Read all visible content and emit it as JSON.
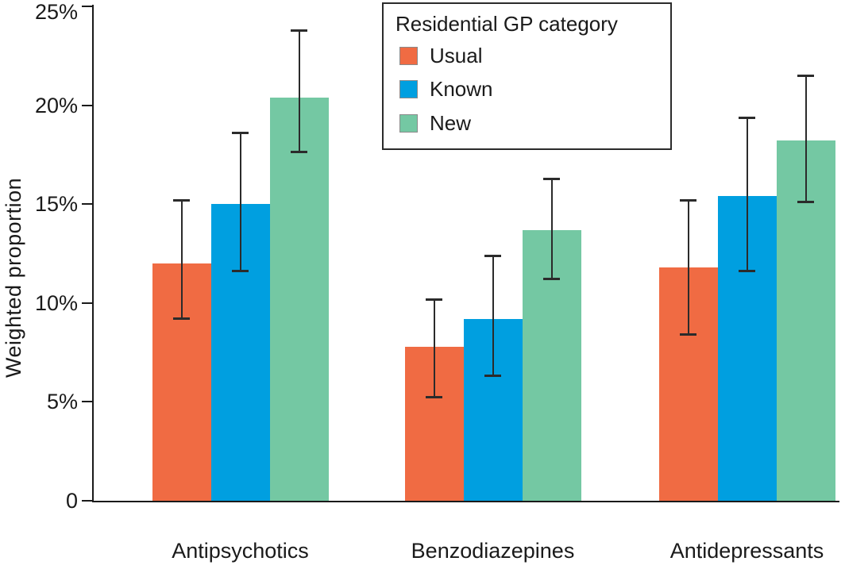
{
  "chart_data": {
    "type": "bar",
    "title": "",
    "categories": [
      "Antipsychotics",
      "Benzodiazepines",
      "Antidepressants"
    ],
    "series": [
      {
        "name": "Usual",
        "color": "#F06B43",
        "values": [
          12.0,
          7.8,
          11.8
        ],
        "ci_low": [
          9.2,
          5.2,
          8.4
        ],
        "ci_high": [
          15.2,
          10.2,
          15.2
        ]
      },
      {
        "name": "Known",
        "color": "#009FE0",
        "values": [
          15.0,
          9.2,
          15.4
        ],
        "ci_low": [
          11.6,
          6.3,
          11.6
        ],
        "ci_high": [
          18.6,
          12.4,
          19.4
        ]
      },
      {
        "name": "New",
        "color": "#74C8A3",
        "values": [
          20.4,
          13.7,
          18.2
        ],
        "ci_low": [
          17.6,
          11.2,
          15.1
        ],
        "ci_high": [
          23.8,
          16.3,
          21.5
        ]
      }
    ],
    "xlabel": "",
    "ylabel": "Weighted proportion",
    "ylim": [
      0,
      25
    ],
    "yticks": [
      0,
      5,
      10,
      15,
      20,
      25
    ],
    "ytick_labels": [
      "0",
      "5%",
      "10%",
      "15%",
      "20%",
      "25%"
    ],
    "grid": false,
    "error_bars": true,
    "legend": {
      "title": "Residential GP category",
      "position": "top-center-inside"
    },
    "colors": {
      "axis": "#1a1a1a",
      "error_bar": "#2b2b2b",
      "usual": "#F06B43",
      "known": "#009FE0",
      "new": "#74C8A3"
    }
  }
}
